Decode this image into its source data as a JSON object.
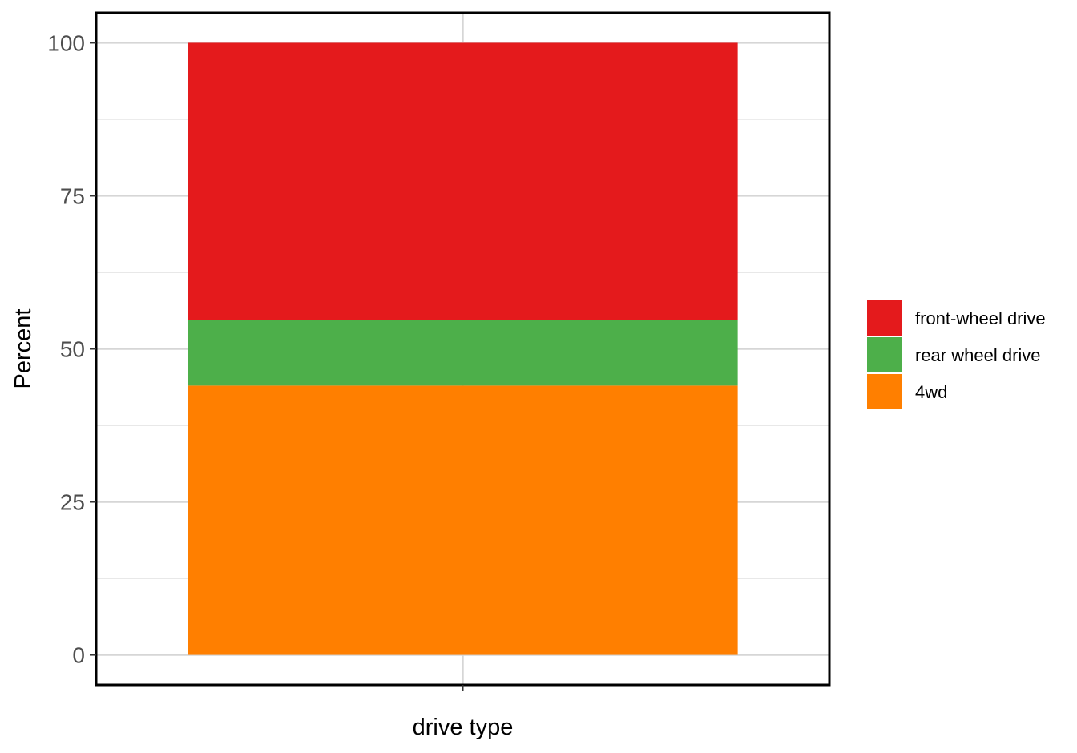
{
  "chart_data": {
    "type": "bar",
    "stacked": true,
    "percent": true,
    "categories": [
      ""
    ],
    "series": [
      {
        "name": "4wd",
        "values": [
          44.0
        ],
        "color": "#ff7f00"
      },
      {
        "name": "rear wheel drive",
        "values": [
          10.7
        ],
        "color": "#4daf4a"
      },
      {
        "name": "front-wheel drive",
        "values": [
          45.3
        ],
        "color": "#e41a1c"
      }
    ],
    "legend_order": [
      "front-wheel drive",
      "rear wheel drive",
      "4wd"
    ],
    "title": "",
    "xlabel": "drive type",
    "ylabel": "Percent",
    "ylim": [
      -4.9,
      104.9
    ],
    "yticks": [
      0,
      25,
      50,
      75,
      100
    ],
    "ytick_labels": [
      "0",
      "25",
      "50",
      "75",
      "100"
    ],
    "grid": true,
    "legend_position": "right"
  }
}
